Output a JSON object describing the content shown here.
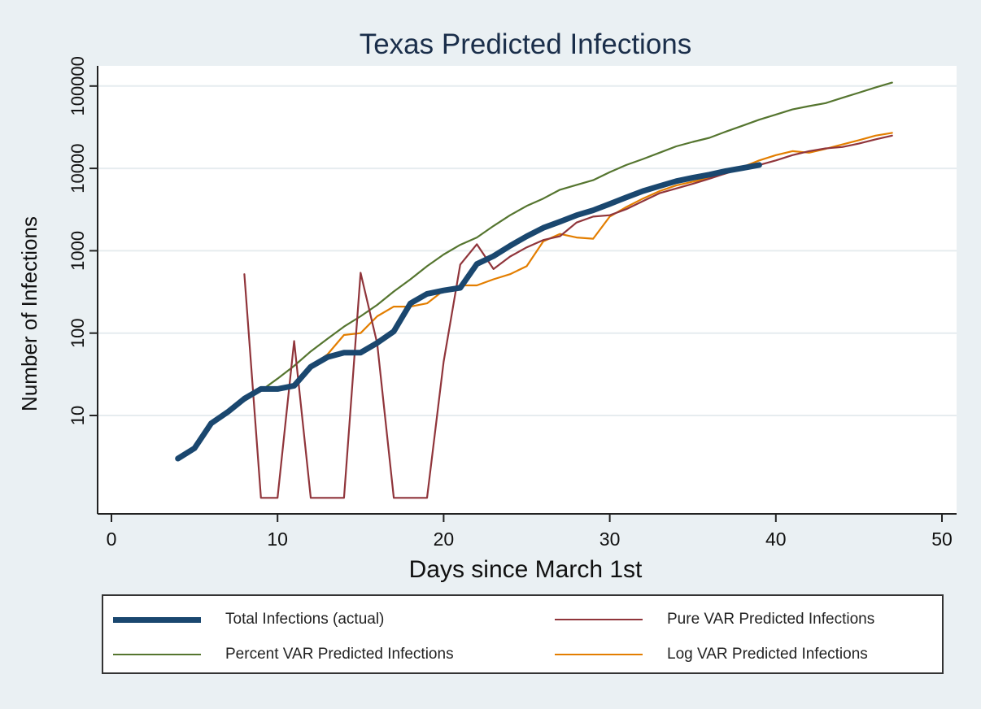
{
  "chart_data": {
    "type": "line",
    "title": "Texas Predicted Infections",
    "xlabel": "Days since March 1st",
    "ylabel": "Number of Infections",
    "xlim": [
      -1,
      50
    ],
    "ylim": [
      1,
      140000
    ],
    "yscale": "log",
    "xticks": [
      0,
      10,
      20,
      30,
      40,
      50
    ],
    "yticks": [
      10,
      100,
      1000,
      10000,
      100000
    ],
    "ytick_labels": [
      "10",
      "100",
      "1000",
      "10000",
      "100000"
    ],
    "grid": true,
    "legend_position": "bottom",
    "series": [
      {
        "name": "Total Infections (actual)",
        "color": "#1a476f",
        "points": [
          [
            4,
            3
          ],
          [
            5,
            4
          ],
          [
            6,
            8
          ],
          [
            7,
            11
          ],
          [
            8,
            16
          ],
          [
            9,
            21
          ],
          [
            10,
            21
          ],
          [
            11,
            23
          ],
          [
            12,
            39
          ],
          [
            13,
            51
          ],
          [
            14,
            58
          ],
          [
            15,
            58
          ],
          [
            16,
            76
          ],
          [
            17,
            105
          ],
          [
            18,
            230
          ],
          [
            19,
            300
          ],
          [
            20,
            330
          ],
          [
            21,
            355
          ],
          [
            22,
            690
          ],
          [
            23,
            860
          ],
          [
            24,
            1150
          ],
          [
            25,
            1500
          ],
          [
            26,
            1900
          ],
          [
            27,
            2250
          ],
          [
            28,
            2700
          ],
          [
            29,
            3100
          ],
          [
            30,
            3700
          ],
          [
            31,
            4450
          ],
          [
            32,
            5300
          ],
          [
            33,
            6100
          ],
          [
            34,
            7000
          ],
          [
            35,
            7700
          ],
          [
            36,
            8400
          ],
          [
            37,
            9300
          ],
          [
            38,
            10100
          ],
          [
            39,
            11000
          ]
        ]
      },
      {
        "name": "Pure VAR Predicted Infections",
        "color": "#90353b",
        "points": [
          [
            8,
            520
          ],
          [
            9,
            1
          ],
          [
            10,
            1
          ],
          [
            11,
            80
          ],
          [
            12,
            1
          ],
          [
            13,
            1
          ],
          [
            14,
            1
          ],
          [
            15,
            540
          ],
          [
            16,
            75
          ],
          [
            17,
            1
          ],
          [
            18,
            1
          ],
          [
            19,
            1
          ],
          [
            20,
            45
          ],
          [
            21,
            680
          ],
          [
            22,
            1200
          ],
          [
            23,
            600
          ],
          [
            24,
            850
          ],
          [
            25,
            1100
          ],
          [
            26,
            1350
          ],
          [
            27,
            1500
          ],
          [
            28,
            2200
          ],
          [
            29,
            2600
          ],
          [
            30,
            2700
          ],
          [
            31,
            3200
          ],
          [
            32,
            4000
          ],
          [
            33,
            5000
          ],
          [
            34,
            5700
          ],
          [
            35,
            6500
          ],
          [
            36,
            7500
          ],
          [
            37,
            8700
          ],
          [
            38,
            10000
          ],
          [
            39,
            11000
          ],
          [
            40,
            12500
          ],
          [
            41,
            14500
          ],
          [
            42,
            16200
          ],
          [
            43,
            17500
          ],
          [
            44,
            18200
          ],
          [
            45,
            20000
          ],
          [
            46,
            22500
          ],
          [
            47,
            25000
          ]
        ]
      },
      {
        "name": "Percent VAR Predicted Infections",
        "color": "#55752f",
        "points": [
          [
            7,
            11
          ],
          [
            8,
            15
          ],
          [
            9,
            20
          ],
          [
            10,
            28
          ],
          [
            11,
            40
          ],
          [
            12,
            60
          ],
          [
            13,
            85
          ],
          [
            14,
            120
          ],
          [
            15,
            160
          ],
          [
            16,
            220
          ],
          [
            17,
            320
          ],
          [
            18,
            450
          ],
          [
            19,
            650
          ],
          [
            20,
            900
          ],
          [
            21,
            1180
          ],
          [
            22,
            1450
          ],
          [
            23,
            2000
          ],
          [
            24,
            2700
          ],
          [
            25,
            3500
          ],
          [
            26,
            4300
          ],
          [
            27,
            5500
          ],
          [
            28,
            6300
          ],
          [
            29,
            7200
          ],
          [
            30,
            9000
          ],
          [
            31,
            11000
          ],
          [
            32,
            13000
          ],
          [
            33,
            15500
          ],
          [
            34,
            18500
          ],
          [
            35,
            21000
          ],
          [
            36,
            23500
          ],
          [
            37,
            28000
          ],
          [
            38,
            33000
          ],
          [
            39,
            39000
          ],
          [
            40,
            45000
          ],
          [
            41,
            52000
          ],
          [
            42,
            57000
          ],
          [
            43,
            62000
          ],
          [
            44,
            72000
          ],
          [
            45,
            83000
          ],
          [
            46,
            96000
          ],
          [
            47,
            110000
          ]
        ]
      },
      {
        "name": "Log VAR Predicted Infections",
        "color": "#e37e00",
        "points": [
          [
            12,
            40
          ],
          [
            13,
            55
          ],
          [
            14,
            95
          ],
          [
            15,
            100
          ],
          [
            16,
            160
          ],
          [
            17,
            210
          ],
          [
            18,
            210
          ],
          [
            19,
            230
          ],
          [
            20,
            330
          ],
          [
            21,
            380
          ],
          [
            22,
            380
          ],
          [
            23,
            450
          ],
          [
            24,
            520
          ],
          [
            25,
            650
          ],
          [
            26,
            1300
          ],
          [
            27,
            1600
          ],
          [
            28,
            1450
          ],
          [
            29,
            1400
          ],
          [
            30,
            2600
          ],
          [
            31,
            3400
          ],
          [
            32,
            4300
          ],
          [
            33,
            5300
          ],
          [
            34,
            6200
          ],
          [
            35,
            6900
          ],
          [
            36,
            7700
          ],
          [
            37,
            8700
          ],
          [
            38,
            10400
          ],
          [
            39,
            12500
          ],
          [
            40,
            14500
          ],
          [
            41,
            16200
          ],
          [
            42,
            15500
          ],
          [
            43,
            17300
          ],
          [
            44,
            19500
          ],
          [
            45,
            22000
          ],
          [
            46,
            25000
          ],
          [
            47,
            27000
          ]
        ]
      }
    ]
  }
}
